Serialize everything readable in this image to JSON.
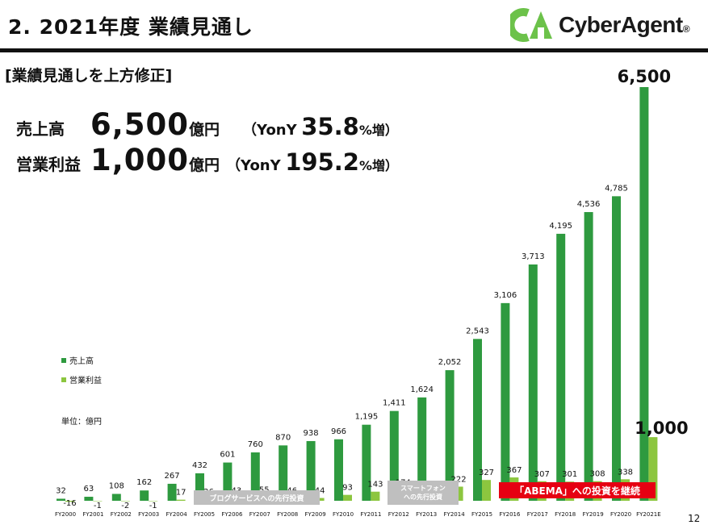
{
  "header": {
    "title": "2. 2021年度 業績見通し",
    "logo_text": "CyberAgent",
    "logo_registered": "®"
  },
  "subtitle": "[業績見通しを上方修正]",
  "kpis": [
    {
      "label": "売上高",
      "value": "6,500",
      "unit": "億円",
      "yoy_prefix": "（YonY",
      "yoy_value": "35.8",
      "yoy_suffix": "%増）"
    },
    {
      "label": "営業利益",
      "value": "1,000",
      "unit": "億円",
      "yoy_prefix": "（YonY",
      "yoy_value": "195.2",
      "yoy_suffix": "%増）"
    }
  ],
  "legend": {
    "sales": "売上高",
    "profit": "営業利益"
  },
  "unit_note": "単位：億円",
  "annotations": {
    "blog": "ブログサービスへの先行投資",
    "smartphone_line1": "スマートフォン",
    "smartphone_line2": "への先行投資",
    "abema": "「ABEMA」への投資を継続"
  },
  "colors": {
    "sales": "#2e9a3f",
    "profit": "#8cc63f",
    "accent_red": "#e60012",
    "annotation_gray": "#bfbfbf",
    "logo_green": "#6cc24a"
  },
  "page_number": "12",
  "chart_data": {
    "type": "bar",
    "categories": [
      "FY2000",
      "FY2001",
      "FY2002",
      "FY2003",
      "FY2004",
      "FY2005",
      "FY2006",
      "FY2007",
      "FY2008",
      "FY2009",
      "FY2010",
      "FY2011",
      "FY2012",
      "FY2013",
      "FY2014",
      "FY2015",
      "FY2016",
      "FY2017",
      "FY2018",
      "FY2019",
      "FY2020",
      "FY2021E"
    ],
    "series": [
      {
        "name": "売上高",
        "values": [
          32,
          63,
          108,
          162,
          267,
          432,
          601,
          760,
          870,
          938,
          966,
          1195,
          1411,
          1624,
          2052,
          2543,
          3106,
          3713,
          4195,
          4536,
          4785,
          6500
        ],
        "labels": [
          "32",
          "63",
          "108",
          "162",
          "267",
          "432",
          "601",
          "760",
          "870",
          "938",
          "966",
          "1,195",
          "1,411",
          "1,624",
          "2,052",
          "2,543",
          "3,106",
          "3,713",
          "4,195",
          "4,536",
          "4,785",
          "6,500"
        ]
      },
      {
        "name": "営業利益",
        "values": [
          -16,
          -1,
          -2,
          -1,
          17,
          26,
          43,
          55,
          46,
          44,
          93,
          143,
          174,
          103,
          222,
          327,
          367,
          307,
          301,
          308,
          338,
          1000
        ],
        "labels": [
          "-16",
          "-1",
          "-2",
          "-1",
          "17",
          "26",
          "43",
          "55",
          "46",
          "44",
          "93",
          "143",
          "174",
          "103",
          "222",
          "327",
          "367",
          "307",
          "301",
          "308",
          "338",
          "1,000"
        ]
      }
    ],
    "ylabel": "単位：億円",
    "grid": false,
    "legend_position": "left"
  }
}
